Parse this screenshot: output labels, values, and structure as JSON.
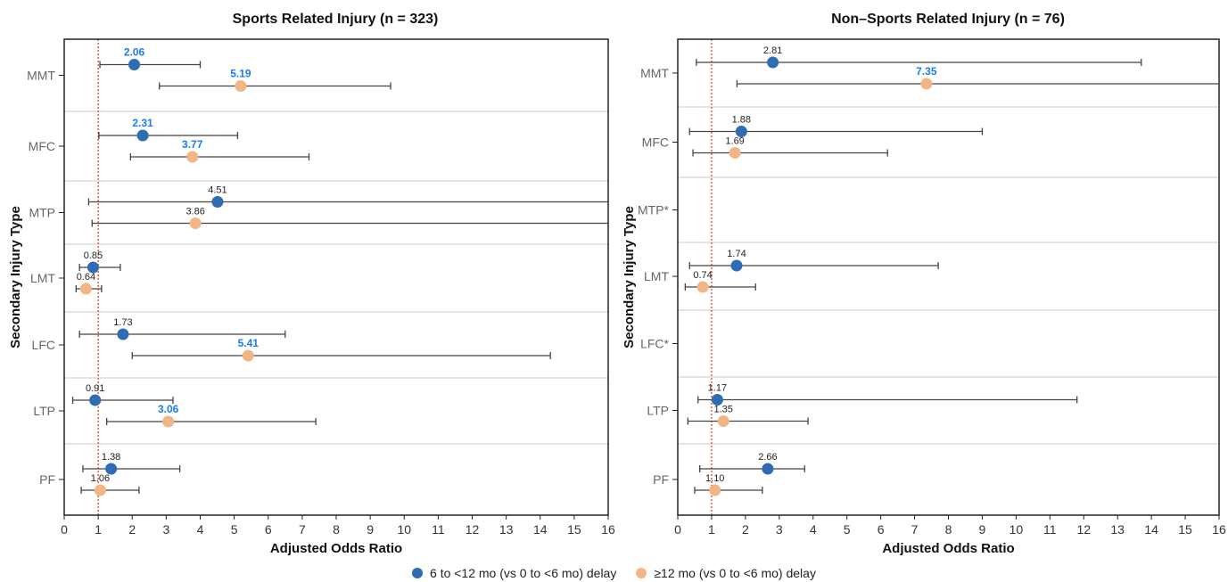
{
  "colors": {
    "series1": "#2e6db4",
    "series2": "#f2b585",
    "highlight_label": "#1a7cf0",
    "normal_label": "#222222",
    "reference_line": "#e0302a"
  },
  "legend": {
    "series1_label": "6 to <12 mo (vs 0 to <6 mo) delay",
    "series2_label": "≥12 mo (vs 0 to <6 mo) delay"
  },
  "chart_data": [
    {
      "type": "scatter",
      "title": "Sports Related Injury (n = 323)",
      "xlabel": "Adjusted Odds Ratio",
      "ylabel": "Secondary Injury Type",
      "xlim": [
        0,
        16
      ],
      "xticks": [
        0,
        1,
        2,
        3,
        4,
        5,
        6,
        7,
        8,
        9,
        10,
        11,
        12,
        13,
        14,
        15,
        16
      ],
      "reference_line": 1,
      "categories": [
        "MMT",
        "MFC",
        "MTP",
        "LMT",
        "LFC",
        "LTP",
        "PF"
      ],
      "series": [
        {
          "name": "6 to <12 mo (vs 0 to <6 mo) delay",
          "values": [
            2.06,
            2.31,
            4.51,
            0.85,
            1.73,
            0.91,
            1.38
          ],
          "ci_low": [
            1.05,
            1.02,
            0.72,
            0.45,
            0.45,
            0.25,
            0.55
          ],
          "ci_high": [
            4.0,
            5.1,
            16,
            1.65,
            6.5,
            3.2,
            3.4
          ],
          "label_text": [
            "2.06",
            "2.31",
            "4.51",
            "0.85",
            "1.73",
            "0.91",
            "1.38"
          ],
          "highlight": [
            true,
            true,
            false,
            false,
            false,
            false,
            false
          ]
        },
        {
          "name": "≥12 mo (vs 0 to <6 mo) delay",
          "values": [
            5.19,
            3.77,
            3.86,
            0.64,
            5.41,
            3.06,
            1.06
          ],
          "ci_low": [
            2.8,
            1.95,
            0.82,
            0.35,
            2.0,
            1.25,
            0.5
          ],
          "ci_high": [
            9.6,
            7.2,
            16,
            1.1,
            14.3,
            7.4,
            2.2
          ],
          "label_text": [
            "5.19",
            "3.77",
            "3.86",
            "0.64",
            "5.41",
            "3.06",
            "1.06"
          ],
          "highlight": [
            true,
            true,
            false,
            false,
            true,
            true,
            false
          ]
        }
      ]
    },
    {
      "type": "scatter",
      "title": "Non–Sports Related Injury (n = 76)",
      "xlabel": "Adjusted Odds Ratio",
      "ylabel": "Secondary Injury Type",
      "xlim": [
        0,
        16
      ],
      "xticks": [
        0,
        1,
        2,
        3,
        4,
        5,
        6,
        7,
        8,
        9,
        10,
        11,
        12,
        13,
        14,
        15,
        16
      ],
      "reference_line": 1,
      "categories": [
        "MMT",
        "MFC",
        "MTP*",
        "LMT",
        "LFC*",
        "LTP",
        "PF"
      ],
      "series": [
        {
          "name": "6 to <12 mo (vs 0 to <6 mo) delay",
          "values": [
            2.81,
            1.88,
            null,
            1.74,
            null,
            1.17,
            2.66
          ],
          "ci_low": [
            0.55,
            0.35,
            null,
            0.35,
            null,
            0.6,
            0.65
          ],
          "ci_high": [
            13.7,
            9.0,
            null,
            7.7,
            null,
            11.8,
            3.75
          ],
          "label_text": [
            "2.81",
            "1.88",
            null,
            "1.74",
            null,
            "1.17",
            "2.66"
          ],
          "highlight": [
            false,
            false,
            false,
            false,
            false,
            false,
            false
          ]
        },
        {
          "name": "≥12 mo (vs 0 to <6 mo) delay",
          "values": [
            7.35,
            1.69,
            null,
            0.74,
            null,
            1.35,
            1.1
          ],
          "ci_low": [
            1.75,
            0.45,
            null,
            0.22,
            null,
            0.3,
            0.5
          ],
          "ci_high": [
            16,
            6.2,
            null,
            2.3,
            null,
            3.85,
            2.5
          ],
          "label_text": [
            "7.35",
            "1.69",
            null,
            "0.74",
            null,
            "1.35",
            "1.10"
          ],
          "highlight": [
            true,
            false,
            false,
            false,
            false,
            false,
            false
          ]
        }
      ]
    }
  ]
}
